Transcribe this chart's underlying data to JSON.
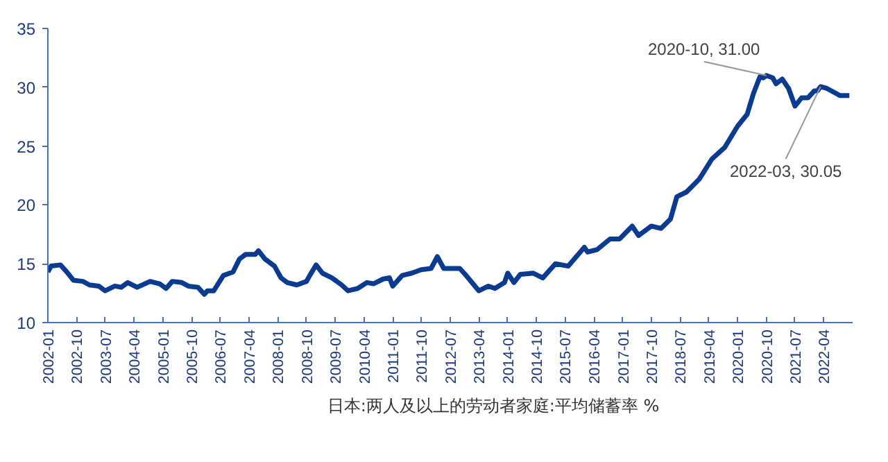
{
  "chart_data": {
    "type": "line",
    "legend": "bottom",
    "grid": false,
    "xlim": [
      "2002-01",
      "2023-01"
    ],
    "xticks": [
      "2002-01",
      "2002-10",
      "2003-07",
      "2004-04",
      "2005-01",
      "2005-10",
      "2006-07",
      "2007-04",
      "2008-01",
      "2008-10",
      "2009-07",
      "2010-04",
      "2011-01",
      "2011-10",
      "2012-07",
      "2013-04",
      "2014-01",
      "2014-10",
      "2015-07",
      "2016-04",
      "2017-01",
      "2017-10",
      "2018-07",
      "2019-04",
      "2020-01",
      "2020-10",
      "2021-07",
      "2022-04"
    ],
    "ylim": [
      10,
      35
    ],
    "yticks": [
      10,
      15,
      20,
      25,
      30,
      35
    ],
    "annotations": [
      {
        "text": "2020-10, 31.00",
        "x": "2020-10",
        "y": 31.0
      },
      {
        "text": "2022-03, 30.05",
        "x": "2022-03",
        "y": 30.05
      }
    ],
    "x": [
      "2002-01",
      "2002-02",
      "2002-05",
      "2002-07",
      "2002-09",
      "2002-12",
      "2003-02",
      "2003-05",
      "2003-07",
      "2003-10",
      "2003-12",
      "2004-02",
      "2004-05",
      "2004-09",
      "2004-12",
      "2005-02",
      "2005-04",
      "2005-07",
      "2005-09",
      "2005-12",
      "2006-02",
      "2006-03",
      "2006-05",
      "2006-08",
      "2006-11",
      "2007-01",
      "2007-03",
      "2007-06",
      "2007-07",
      "2007-09",
      "2007-12",
      "2008-02",
      "2008-04",
      "2008-07",
      "2008-10",
      "2008-11",
      "2009-01",
      "2009-03",
      "2009-06",
      "2009-09",
      "2009-11",
      "2010-02",
      "2010-05",
      "2010-07",
      "2010-10",
      "2010-12",
      "2011-01",
      "2011-04",
      "2011-07",
      "2011-10",
      "2012-01",
      "2012-03",
      "2012-05",
      "2012-06",
      "2012-10",
      "2012-12",
      "2013-04",
      "2013-07",
      "2013-09",
      "2013-12",
      "2014-01",
      "2014-03",
      "2014-05",
      "2014-09",
      "2014-12",
      "2015-04",
      "2015-08",
      "2016-01",
      "2016-02",
      "2016-05",
      "2016-09",
      "2016-12",
      "2017-04",
      "2017-06",
      "2017-10",
      "2018-01",
      "2018-04",
      "2018-06",
      "2018-09",
      "2019-01",
      "2019-05",
      "2019-09",
      "2020-01",
      "2020-04",
      "2020-06",
      "2020-08",
      "2020-09",
      "2020-10",
      "2020-12",
      "2021-01",
      "2021-03",
      "2021-05",
      "2021-07",
      "2021-09",
      "2021-11",
      "2022-01",
      "2022-02",
      "2022-03",
      "2022-05",
      "2022-09",
      "2022-12"
    ],
    "series": [
      {
        "name": "日本:两人及以上的劳动者家庭:平均储蓄率 %",
        "color": "#0b3a91",
        "values": [
          14.3,
          14.8,
          14.9,
          14.3,
          13.6,
          13.5,
          13.2,
          13.1,
          12.7,
          13.1,
          13.0,
          13.4,
          13.0,
          13.5,
          13.3,
          12.9,
          13.5,
          13.4,
          13.1,
          13.0,
          12.4,
          12.7,
          12.7,
          14.0,
          14.3,
          15.4,
          15.8,
          15.8,
          16.1,
          15.4,
          14.8,
          13.8,
          13.4,
          13.2,
          13.5,
          14.0,
          14.9,
          14.2,
          13.8,
          13.2,
          12.7,
          12.9,
          13.4,
          13.3,
          13.7,
          13.8,
          13.1,
          14.0,
          14.2,
          14.5,
          14.6,
          15.6,
          14.6,
          14.6,
          14.6,
          14.0,
          12.7,
          13.1,
          12.9,
          13.4,
          14.2,
          13.4,
          14.1,
          14.2,
          13.8,
          15.0,
          14.8,
          16.4,
          16.0,
          16.2,
          17.1,
          17.1,
          18.2,
          17.4,
          18.2,
          18.0,
          18.8,
          20.7,
          21.1,
          22.2,
          23.9,
          24.9,
          26.7,
          27.7,
          29.5,
          30.9,
          30.8,
          31.0,
          30.8,
          30.3,
          30.7,
          29.9,
          28.4,
          29.1,
          29.1,
          29.7,
          29.7,
          30.05,
          29.9,
          29.3,
          29.3
        ]
      }
    ]
  }
}
